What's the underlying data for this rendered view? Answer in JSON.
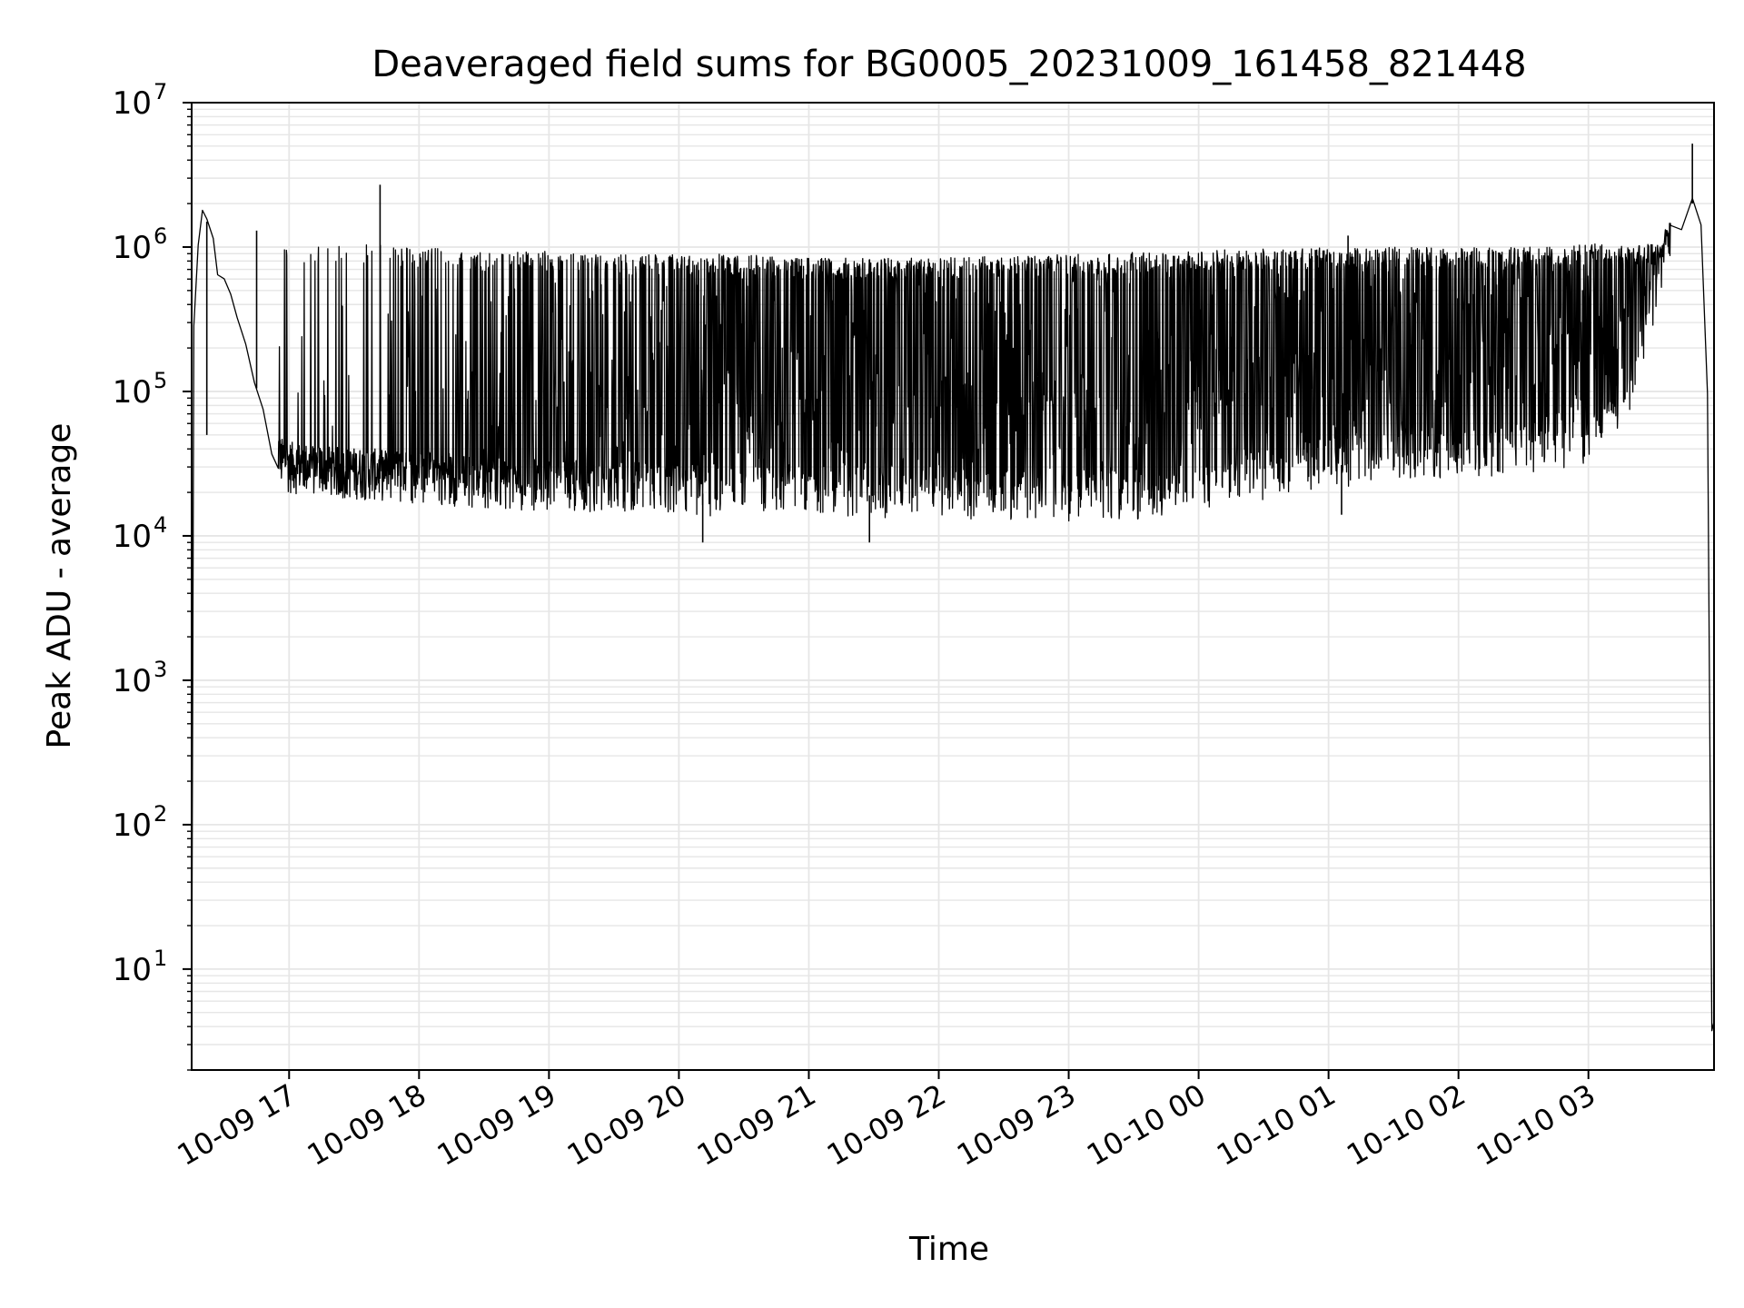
{
  "chart_data": {
    "type": "line",
    "title": "Deaveraged field sums for BG0005_20231009_161458_821448",
    "xlabel": "Time",
    "ylabel": "Peak ADU - average",
    "yscale": "log",
    "grid": true,
    "line_color": "#000000",
    "grid_color": "#e6e6e6",
    "xlim": [
      "2023-10-09 16:15",
      "2023-10-10 03:58"
    ],
    "ylim": [
      2,
      10000000
    ],
    "x_ticks": [
      "2023-10-09 17:00",
      "2023-10-09 18:00",
      "2023-10-09 19:00",
      "2023-10-09 20:00",
      "2023-10-09 21:00",
      "2023-10-09 22:00",
      "2023-10-09 23:00",
      "2023-10-10 00:00",
      "2023-10-10 01:00",
      "2023-10-10 02:00",
      "2023-10-10 03:00"
    ],
    "x_tick_labels": [
      "10-09 17",
      "10-09 18",
      "10-09 19",
      "10-09 20",
      "10-09 21",
      "10-09 22",
      "10-09 23",
      "10-10 00",
      "10-10 01",
      "10-10 02",
      "10-10 03"
    ],
    "y_ticks": [
      10,
      100,
      1000,
      10000,
      100000,
      1000000,
      10000000
    ],
    "y_tick_labels": [
      {
        "base": "10",
        "exp": "1"
      },
      {
        "base": "10",
        "exp": "2"
      },
      {
        "base": "10",
        "exp": "3"
      },
      {
        "base": "10",
        "exp": "4"
      },
      {
        "base": "10",
        "exp": "5"
      },
      {
        "base": "10",
        "exp": "6"
      },
      {
        "base": "10",
        "exp": "7"
      }
    ],
    "series": [
      {
        "x": [
          "2023-10-09 16:15",
          "2023-10-09 16:16",
          "2023-10-09 16:18",
          "2023-10-09 16:20",
          "2023-10-09 16:22",
          "2023-10-09 16:25",
          "2023-10-09 16:27",
          "2023-10-09 16:30",
          "2023-10-09 16:33",
          "2023-10-09 16:36",
          "2023-10-09 16:40",
          "2023-10-09 16:44",
          "2023-10-09 16:48",
          "2023-10-09 16:52",
          "2023-10-09 16:56",
          "2023-10-09 17:00",
          "2023-10-09 17:20",
          "2023-10-09 17:40",
          "2023-10-09 18:00",
          "2023-10-09 18:30",
          "2023-10-09 19:00",
          "2023-10-09 19:30",
          "2023-10-09 20:00",
          "2023-10-09 20:30",
          "2023-10-09 21:00",
          "2023-10-09 21:30",
          "2023-10-09 22:00",
          "2023-10-09 22:30",
          "2023-10-09 23:00",
          "2023-10-09 23:30",
          "2023-10-10 00:00",
          "2023-10-10 00:30",
          "2023-10-10 01:00",
          "2023-10-10 01:30",
          "2023-10-10 02:00",
          "2023-10-10 02:30",
          "2023-10-10 03:00",
          "2023-10-10 03:15",
          "2023-10-10 03:25",
          "2023-10-10 03:35",
          "2023-10-10 03:43",
          "2023-10-10 03:48",
          "2023-10-10 03:52",
          "2023-10-10 03:55",
          "2023-10-10 03:57",
          "2023-10-10 03:58"
        ],
        "y": [
          4,
          300000,
          1000000,
          1600000,
          1500000,
          1100000,
          700000,
          550000,
          450000,
          300000,
          200000,
          120000,
          70000,
          40000,
          30000,
          28000,
          26000,
          25000,
          24000,
          22000,
          21000,
          21000,
          20000,
          19000,
          20000,
          19000,
          19000,
          18000,
          18000,
          18000,
          20000,
          25000,
          30000,
          35000,
          35000,
          38000,
          45000,
          70000,
          200000,
          800000,
          1300000,
          2000000,
          1400000,
          100000,
          4,
          4
        ],
        "upper_envelope": [
          1000000,
          1000000,
          950000,
          900000,
          900000,
          850000,
          850000,
          850000,
          800000,
          800000,
          800000,
          850000,
          900000,
          950000,
          950000,
          950000,
          1000000
        ],
        "envelope_x": [
          "2023-10-09 16:55",
          "2023-10-09 17:30",
          "2023-10-09 18:00",
          "2023-10-09 18:30",
          "2023-10-09 19:00",
          "2023-10-09 19:30",
          "2023-10-09 20:00",
          "2023-10-09 20:30",
          "2023-10-09 21:00",
          "2023-10-09 21:30",
          "2023-10-09 22:00",
          "2023-10-09 23:00",
          "2023-10-10 00:00",
          "2023-10-10 01:00",
          "2023-10-10 02:00",
          "2023-10-10 02:30",
          "2023-10-10 03:00"
        ],
        "spikes": [
          {
            "x": "2023-10-09 16:22",
            "y": 50000
          },
          {
            "x": "2023-10-09 16:45",
            "y": 1300000
          },
          {
            "x": "2023-10-09 17:42",
            "y": 2700000
          },
          {
            "x": "2023-10-09 20:11",
            "y": 9000
          },
          {
            "x": "2023-10-09 21:28",
            "y": 9000
          },
          {
            "x": "2023-10-10 01:06",
            "y": 14000
          },
          {
            "x": "2023-10-10 01:09",
            "y": 1200000
          },
          {
            "x": "2023-10-10 03:48",
            "y": 5200000
          }
        ]
      }
    ]
  }
}
